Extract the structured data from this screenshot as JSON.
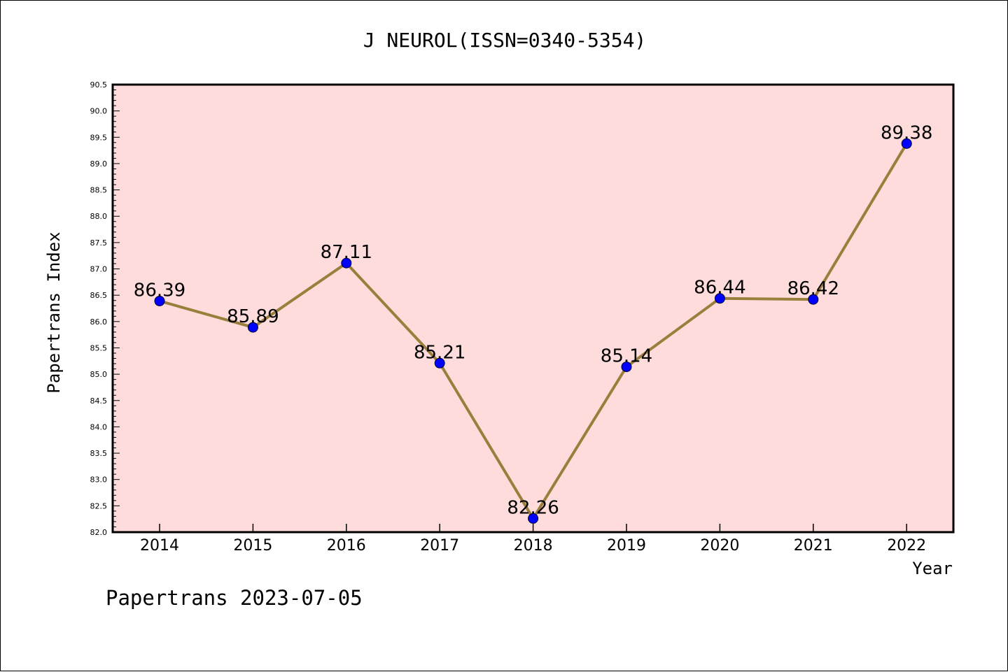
{
  "chart_data": {
    "type": "line",
    "title": "J NEUROL(ISSN=0340-5354)",
    "xlabel": "Year",
    "ylabel": "Papertrans Index",
    "categories": [
      "2014",
      "2015",
      "2016",
      "2017",
      "2018",
      "2019",
      "2020",
      "2021",
      "2022"
    ],
    "series": [
      {
        "values": [
          86.39,
          85.89,
          87.11,
          85.21,
          82.26,
          85.14,
          86.44,
          86.42,
          89.38
        ],
        "data_labels": [
          "86.39",
          "85.89",
          "87.11",
          "85.21",
          "82.26",
          "85.14",
          "86.44",
          "86.42",
          "89.38"
        ]
      }
    ],
    "ylim": [
      82.0,
      90.5
    ],
    "yticks": [
      "82.0",
      "82.5",
      "83.0",
      "83.5",
      "84.0",
      "84.5",
      "85.0",
      "85.5",
      "86.0",
      "86.5",
      "87.0",
      "87.5",
      "88.0",
      "88.5",
      "89.0",
      "89.5",
      "90.0",
      "90.5"
    ],
    "y_minor_step": 0.1,
    "grid": false,
    "legend": "none",
    "colors": {
      "plot_background": "#ffdcdc",
      "line": "#9a7f3c",
      "marker": "#0000ff",
      "axis": "#000000"
    }
  },
  "footer": {
    "text": "Papertrans 2023-07-05"
  }
}
